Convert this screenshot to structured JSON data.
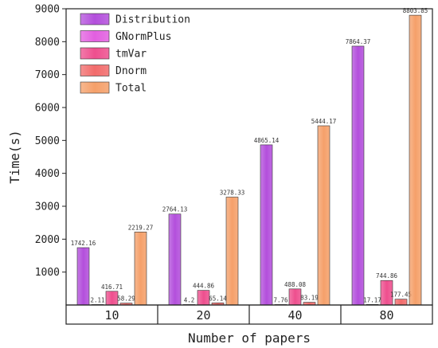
{
  "chart_data": {
    "type": "bar",
    "xlabel": "Number of papers",
    "ylabel": "Time(s)",
    "ylim": [
      0,
      9000
    ],
    "yticks": [
      1000,
      2000,
      3000,
      4000,
      5000,
      6000,
      7000,
      8000,
      9000
    ],
    "categories": [
      "10",
      "20",
      "40",
      "80"
    ],
    "legend_position": "top-left",
    "series": [
      {
        "name": "Distribution",
        "color": "#b34fdc",
        "values": [
          1742.16,
          2764.13,
          4865.14,
          7864.37
        ],
        "labels": [
          "1742.16",
          "2764.13",
          "4865.14",
          "7864.37"
        ]
      },
      {
        "name": "GNormPlus",
        "color": "#e25fe0",
        "values": [
          2.11,
          4.2,
          7.76,
          17.17
        ],
        "labels": [
          "2.11",
          "4.2",
          "7.76",
          "17.17"
        ]
      },
      {
        "name": "tmVar",
        "color": "#ee4f8e",
        "values": [
          416.71,
          444.86,
          488.08,
          744.86
        ],
        "labels": [
          "416.71",
          "444.86",
          "488.08",
          "744.86"
        ]
      },
      {
        "name": "Dnorm",
        "color": "#f26b6b",
        "values": [
          58.29,
          65.14,
          83.19,
          177.45
        ],
        "labels": [
          "58.29",
          "65.14",
          "83.19",
          "177.45"
        ]
      },
      {
        "name": "Total",
        "color": "#f5a06a",
        "values": [
          2219.27,
          3278.33,
          5444.17,
          8803.85
        ],
        "labels": [
          "2219.27",
          "3278.33",
          "5444.17",
          "8803.85"
        ]
      }
    ]
  }
}
